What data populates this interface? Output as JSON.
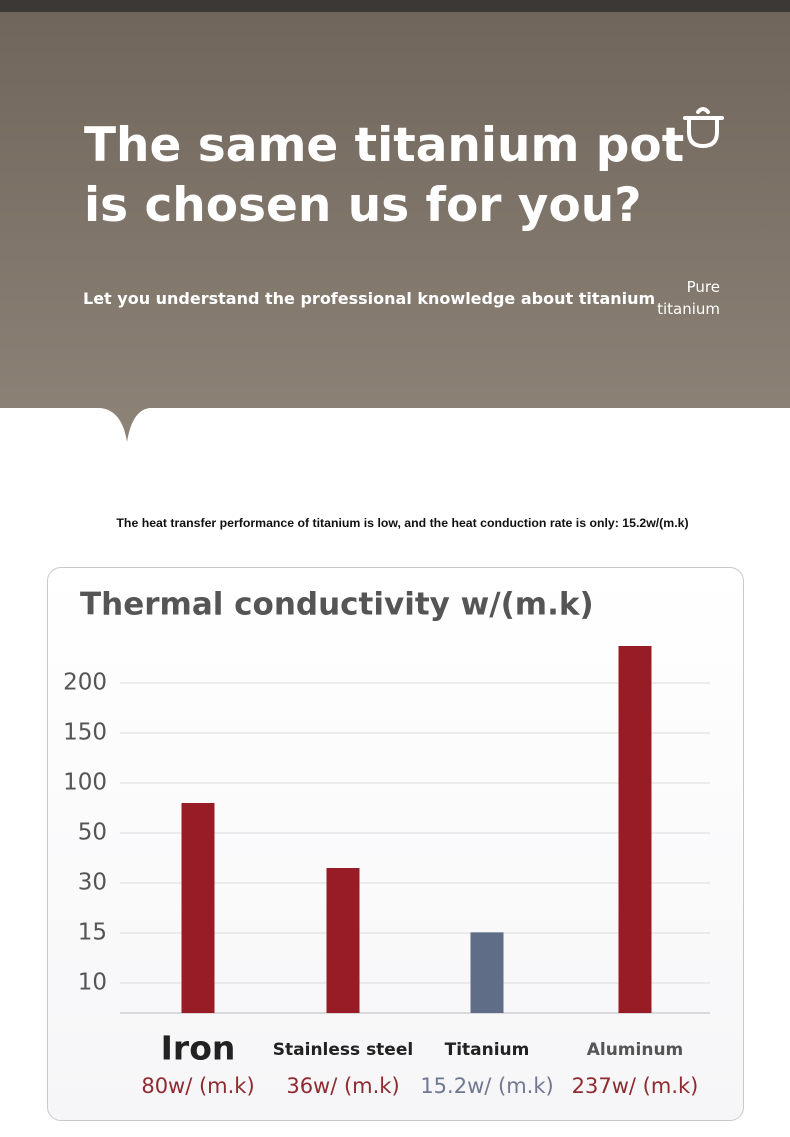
{
  "header": {
    "title_lines": [
      "The same titanium pot",
      "is chosen us for you?"
    ],
    "subtitle": "Let you understand the professional knowledge about titanium",
    "badge_lines": [
      "Pure",
      "titanium"
    ]
  },
  "caption": "The heat transfer performance of titanium is low, and the heat conduction rate is only: 15.2w/(m.k)",
  "chart_data": {
    "type": "bar",
    "title": "Thermal conductivity w/(m.k)",
    "categories": [
      "Iron",
      "Stainless steel",
      "Titanium",
      "Aluminum"
    ],
    "values": [
      80,
      36,
      15.2,
      237
    ],
    "value_labels": [
      "80w/ (m.k)",
      "36w/ (m.k)",
      "15.2w/ (m.k)",
      "237w/ (m.k)"
    ],
    "colors": [
      "#981c26",
      "#981c26",
      "#5f6d86",
      "#981c26"
    ],
    "yticks": [
      200,
      150,
      100,
      50,
      30,
      15,
      10
    ],
    "grid": true
  }
}
